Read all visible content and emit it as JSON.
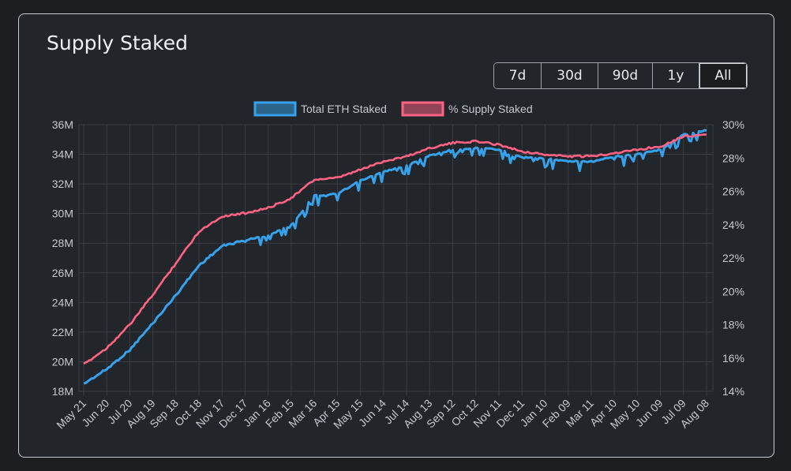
{
  "card": {
    "title": "Supply Staked"
  },
  "range_buttons": [
    {
      "label": "7d",
      "active": false
    },
    {
      "label": "30d",
      "active": false
    },
    {
      "label": "90d",
      "active": false
    },
    {
      "label": "1y",
      "active": false
    },
    {
      "label": "All",
      "active": true
    }
  ],
  "colors": {
    "total_eth": "#36a2eb",
    "supply_pct": "#ff6384",
    "grid": "#3a3d42",
    "text": "#c6c9ce"
  },
  "chart_data": {
    "type": "line",
    "title": "",
    "legend_position": "top",
    "grid": true,
    "x_axis": {
      "tick_labels": [
        "May 21",
        "Jun 20",
        "Jul 20",
        "Aug 19",
        "Sep 18",
        "Oct 18",
        "Nov 17",
        "Dec 17",
        "Jan 16",
        "Feb 15",
        "Mar 16",
        "Apr 15",
        "May 15",
        "Jun 14",
        "Jul 14",
        "Aug 13",
        "Sep 12",
        "Oct 12",
        "Nov 11",
        "Dec 11",
        "Jan 10",
        "Feb 09",
        "Mar 11",
        "Apr 10",
        "May 10",
        "Jun 09",
        "Jul 09",
        "Aug 08"
      ]
    },
    "y_left": {
      "min": 18,
      "max": 36,
      "step": 2,
      "tick_labels": [
        "18M",
        "20M",
        "22M",
        "24M",
        "26M",
        "28M",
        "30M",
        "32M",
        "34M",
        "36M"
      ]
    },
    "y_right": {
      "min": 14,
      "max": 30,
      "step": 2,
      "tick_labels": [
        "14%",
        "16%",
        "18%",
        "20%",
        "22%",
        "24%",
        "26%",
        "28%",
        "30%"
      ]
    },
    "series": [
      {
        "name": "Total ETH Staked",
        "axis": "left",
        "unit": "M ETH",
        "x": [
          0,
          1,
          2,
          3,
          4,
          5,
          6,
          7,
          8,
          9,
          10,
          11,
          12,
          13,
          14,
          15,
          16,
          17,
          18,
          19,
          20,
          21,
          22,
          23,
          24,
          25,
          26,
          27
        ],
        "values": [
          18.5,
          19.5,
          20.8,
          22.6,
          24.5,
          26.5,
          27.8,
          28.2,
          28.5,
          29.2,
          31.2,
          31.3,
          32.2,
          32.8,
          33.2,
          33.9,
          34.3,
          34.4,
          34.3,
          33.8,
          33.7,
          33.5,
          33.5,
          33.8,
          34.0,
          34.3,
          35.3,
          35.6
        ]
      },
      {
        "name": "% Supply Staked",
        "axis": "right",
        "unit": "%",
        "x": [
          0,
          1,
          2,
          3,
          4,
          5,
          6,
          7,
          8,
          9,
          10,
          11,
          12,
          13,
          14,
          15,
          16,
          17,
          18,
          19,
          20,
          21,
          22,
          23,
          24,
          25,
          26,
          27
        ],
        "values": [
          15.6,
          16.6,
          18.0,
          19.8,
          21.7,
          23.6,
          24.5,
          24.7,
          25.0,
          25.6,
          26.7,
          26.8,
          27.3,
          27.8,
          28.1,
          28.6,
          28.9,
          29.0,
          28.8,
          28.4,
          28.2,
          28.1,
          28.1,
          28.3,
          28.5,
          28.7,
          29.3,
          29.4
        ]
      }
    ]
  }
}
